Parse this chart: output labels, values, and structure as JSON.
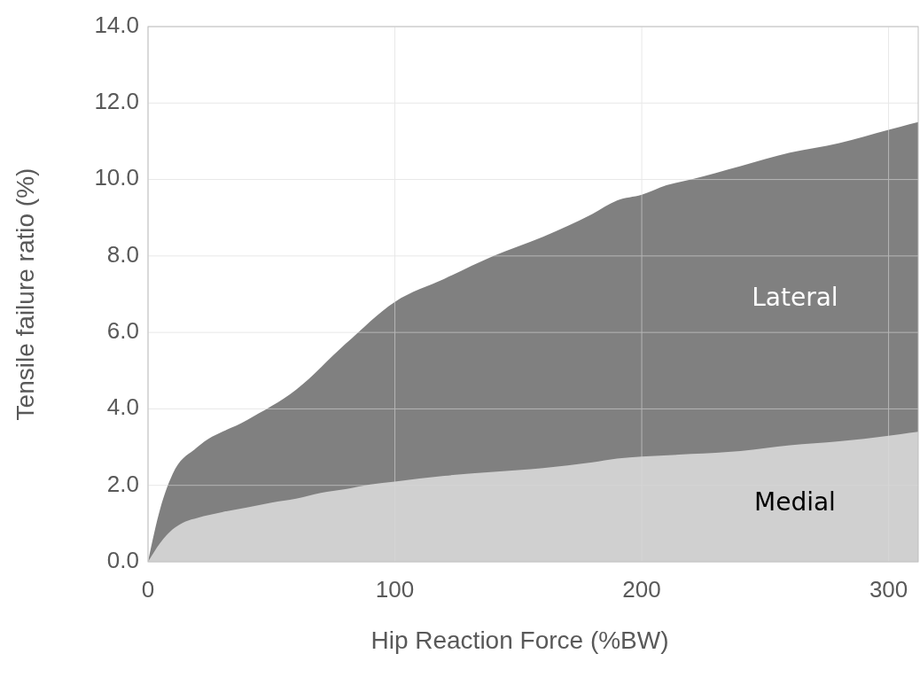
{
  "chart_data": {
    "type": "area",
    "xlabel": "Hip Reaction Force (%BW)",
    "ylabel": "Tensile failure ratio (%)",
    "xlim": [
      0,
      312
    ],
    "xticks": [
      0,
      100,
      200,
      300
    ],
    "ylim": [
      0,
      14
    ],
    "yticks": [
      {
        "value": 0,
        "label": "0.0"
      },
      {
        "value": 2,
        "label": "2.0"
      },
      {
        "value": 4,
        "label": "4.0"
      },
      {
        "value": 6,
        "label": "6.0"
      },
      {
        "value": 8,
        "label": "8.0"
      },
      {
        "value": 10,
        "label": "10.0"
      },
      {
        "value": 12,
        "label": "12.0"
      },
      {
        "value": 14,
        "label": "14.0"
      }
    ],
    "grid": true,
    "series": [
      {
        "name": "Lateral",
        "color": "#808080",
        "x": [
          0,
          5,
          10,
          20,
          40,
          60,
          80,
          100,
          120,
          140,
          160,
          180,
          190,
          200,
          210,
          220,
          240,
          260,
          280,
          300,
          312
        ],
        "values": [
          0,
          1.4,
          2.3,
          3.0,
          3.7,
          4.5,
          5.7,
          6.8,
          7.4,
          8.0,
          8.5,
          9.1,
          9.45,
          9.6,
          9.85,
          10.0,
          10.35,
          10.7,
          10.95,
          11.3,
          11.5
        ]
      },
      {
        "name": "Medial",
        "color": "#d0d0d0",
        "x": [
          0,
          5,
          10,
          15,
          20,
          30,
          40,
          50,
          60,
          70,
          80,
          90,
          100,
          120,
          140,
          160,
          180,
          190,
          200,
          220,
          240,
          260,
          280,
          300,
          312
        ],
        "values": [
          0,
          0.5,
          0.85,
          1.05,
          1.15,
          1.3,
          1.42,
          1.55,
          1.65,
          1.8,
          1.9,
          2.02,
          2.1,
          2.25,
          2.35,
          2.45,
          2.6,
          2.7,
          2.75,
          2.82,
          2.9,
          3.05,
          3.15,
          3.3,
          3.4
        ]
      }
    ]
  }
}
